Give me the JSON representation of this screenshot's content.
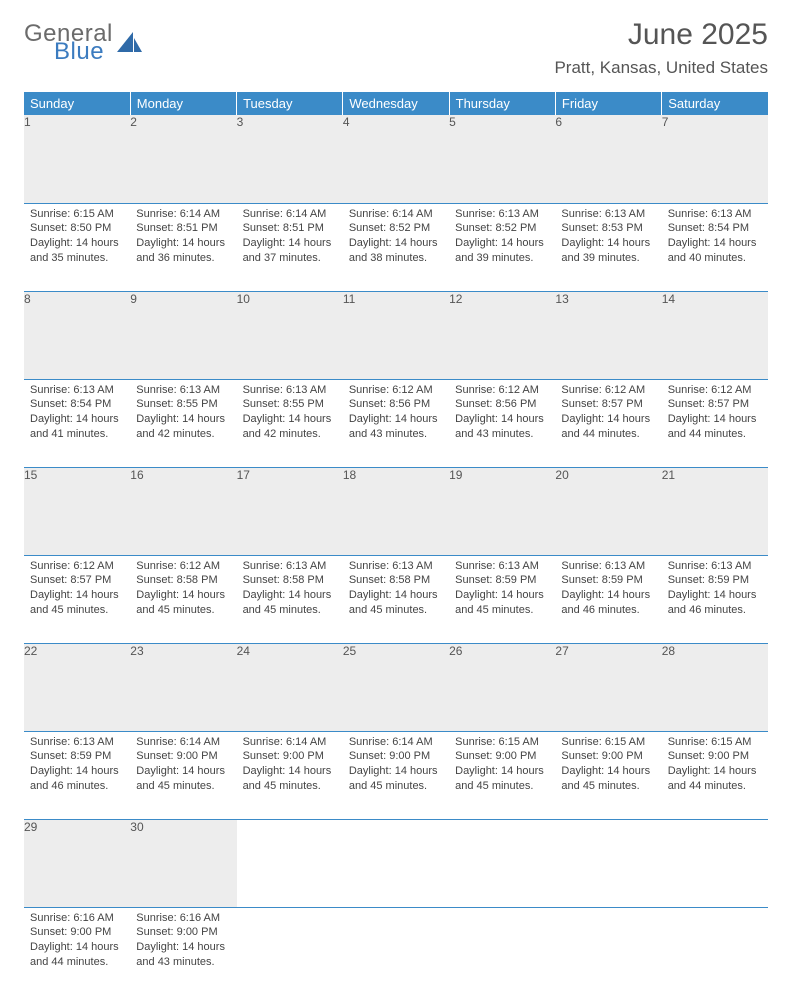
{
  "brand": {
    "part1": "General",
    "part2": "Blue"
  },
  "title": "June 2025",
  "location": "Pratt, Kansas, United States",
  "colors": {
    "header_bg": "#3b8bc8",
    "header_text": "#ffffff",
    "daynum_bg": "#ededed",
    "row_border": "#3b8bc8",
    "body_text": "#444444",
    "brand_gray": "#6b6b6b",
    "brand_blue": "#3b7bbf"
  },
  "typography": {
    "title_fontsize": 30,
    "location_fontsize": 17,
    "weekday_fontsize": 13,
    "daynum_fontsize": 12,
    "body_fontsize": 11
  },
  "weekdays": [
    "Sunday",
    "Monday",
    "Tuesday",
    "Wednesday",
    "Thursday",
    "Friday",
    "Saturday"
  ],
  "weeks": [
    [
      {
        "n": "1",
        "sr": "6:15 AM",
        "ss": "8:50 PM",
        "dl": "14 hours and 35 minutes."
      },
      {
        "n": "2",
        "sr": "6:14 AM",
        "ss": "8:51 PM",
        "dl": "14 hours and 36 minutes."
      },
      {
        "n": "3",
        "sr": "6:14 AM",
        "ss": "8:51 PM",
        "dl": "14 hours and 37 minutes."
      },
      {
        "n": "4",
        "sr": "6:14 AM",
        "ss": "8:52 PM",
        "dl": "14 hours and 38 minutes."
      },
      {
        "n": "5",
        "sr": "6:13 AM",
        "ss": "8:52 PM",
        "dl": "14 hours and 39 minutes."
      },
      {
        "n": "6",
        "sr": "6:13 AM",
        "ss": "8:53 PM",
        "dl": "14 hours and 39 minutes."
      },
      {
        "n": "7",
        "sr": "6:13 AM",
        "ss": "8:54 PM",
        "dl": "14 hours and 40 minutes."
      }
    ],
    [
      {
        "n": "8",
        "sr": "6:13 AM",
        "ss": "8:54 PM",
        "dl": "14 hours and 41 minutes."
      },
      {
        "n": "9",
        "sr": "6:13 AM",
        "ss": "8:55 PM",
        "dl": "14 hours and 42 minutes."
      },
      {
        "n": "10",
        "sr": "6:13 AM",
        "ss": "8:55 PM",
        "dl": "14 hours and 42 minutes."
      },
      {
        "n": "11",
        "sr": "6:12 AM",
        "ss": "8:56 PM",
        "dl": "14 hours and 43 minutes."
      },
      {
        "n": "12",
        "sr": "6:12 AM",
        "ss": "8:56 PM",
        "dl": "14 hours and 43 minutes."
      },
      {
        "n": "13",
        "sr": "6:12 AM",
        "ss": "8:57 PM",
        "dl": "14 hours and 44 minutes."
      },
      {
        "n": "14",
        "sr": "6:12 AM",
        "ss": "8:57 PM",
        "dl": "14 hours and 44 minutes."
      }
    ],
    [
      {
        "n": "15",
        "sr": "6:12 AM",
        "ss": "8:57 PM",
        "dl": "14 hours and 45 minutes."
      },
      {
        "n": "16",
        "sr": "6:12 AM",
        "ss": "8:58 PM",
        "dl": "14 hours and 45 minutes."
      },
      {
        "n": "17",
        "sr": "6:13 AM",
        "ss": "8:58 PM",
        "dl": "14 hours and 45 minutes."
      },
      {
        "n": "18",
        "sr": "6:13 AM",
        "ss": "8:58 PM",
        "dl": "14 hours and 45 minutes."
      },
      {
        "n": "19",
        "sr": "6:13 AM",
        "ss": "8:59 PM",
        "dl": "14 hours and 45 minutes."
      },
      {
        "n": "20",
        "sr": "6:13 AM",
        "ss": "8:59 PM",
        "dl": "14 hours and 46 minutes."
      },
      {
        "n": "21",
        "sr": "6:13 AM",
        "ss": "8:59 PM",
        "dl": "14 hours and 46 minutes."
      }
    ],
    [
      {
        "n": "22",
        "sr": "6:13 AM",
        "ss": "8:59 PM",
        "dl": "14 hours and 46 minutes."
      },
      {
        "n": "23",
        "sr": "6:14 AM",
        "ss": "9:00 PM",
        "dl": "14 hours and 45 minutes."
      },
      {
        "n": "24",
        "sr": "6:14 AM",
        "ss": "9:00 PM",
        "dl": "14 hours and 45 minutes."
      },
      {
        "n": "25",
        "sr": "6:14 AM",
        "ss": "9:00 PM",
        "dl": "14 hours and 45 minutes."
      },
      {
        "n": "26",
        "sr": "6:15 AM",
        "ss": "9:00 PM",
        "dl": "14 hours and 45 minutes."
      },
      {
        "n": "27",
        "sr": "6:15 AM",
        "ss": "9:00 PM",
        "dl": "14 hours and 45 minutes."
      },
      {
        "n": "28",
        "sr": "6:15 AM",
        "ss": "9:00 PM",
        "dl": "14 hours and 44 minutes."
      }
    ],
    [
      {
        "n": "29",
        "sr": "6:16 AM",
        "ss": "9:00 PM",
        "dl": "14 hours and 44 minutes."
      },
      {
        "n": "30",
        "sr": "6:16 AM",
        "ss": "9:00 PM",
        "dl": "14 hours and 43 minutes."
      },
      null,
      null,
      null,
      null,
      null
    ]
  ],
  "labels": {
    "sunrise": "Sunrise:",
    "sunset": "Sunset:",
    "daylight": "Daylight:"
  }
}
